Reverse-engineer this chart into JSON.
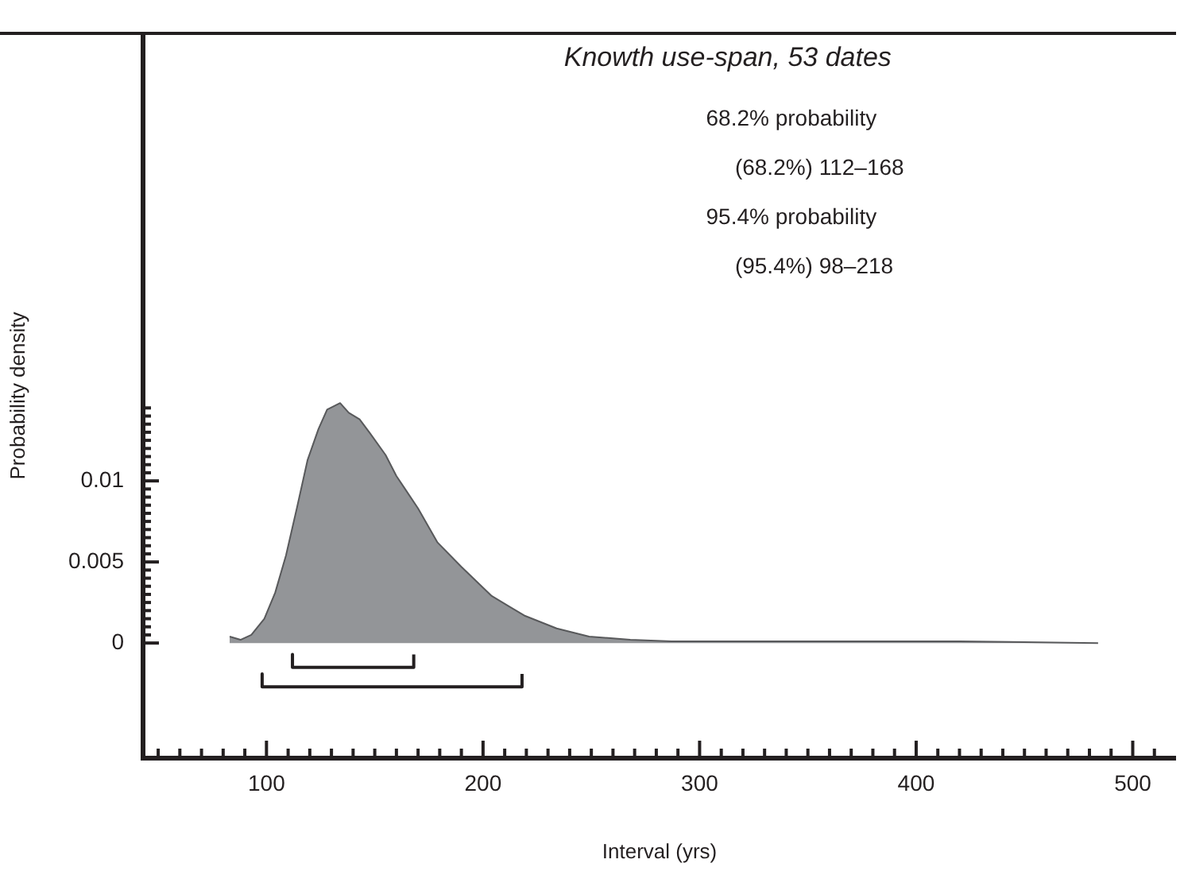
{
  "chart_data": {
    "type": "area",
    "title": "Knowth use-span, 53 dates",
    "xlabel": "Interval (yrs)",
    "ylabel": "Probability density",
    "annotations": [
      "68.2% probability",
      "(68.2%) 112–168",
      "95.4% probability",
      "(95.4%) 98–218"
    ],
    "xlim": [
      43,
      520
    ],
    "ylim": [
      -0.0071,
      0.0376
    ],
    "xticks": [
      {
        "value": 50,
        "label": null
      },
      {
        "value": 60,
        "label": null
      },
      {
        "value": 70,
        "label": null
      },
      {
        "value": 80,
        "label": null
      },
      {
        "value": 90,
        "label": null
      },
      100,
      {
        "value": 110,
        "label": null
      },
      {
        "value": 120,
        "label": null
      },
      {
        "value": 130,
        "label": null
      },
      {
        "value": 140,
        "label": null
      },
      {
        "value": 150,
        "label": null
      },
      {
        "value": 160,
        "label": null
      },
      {
        "value": 170,
        "label": null
      },
      {
        "value": 180,
        "label": null
      },
      {
        "value": 190,
        "label": null
      },
      200,
      {
        "value": 210,
        "label": null
      },
      {
        "value": 220,
        "label": null
      },
      {
        "value": 230,
        "label": null
      },
      {
        "value": 240,
        "label": null
      },
      {
        "value": 250,
        "label": null
      },
      {
        "value": 260,
        "label": null
      },
      {
        "value": 270,
        "label": null
      },
      {
        "value": 280,
        "label": null
      },
      {
        "value": 290,
        "label": null
      },
      300,
      {
        "value": 310,
        "label": null
      },
      {
        "value": 320,
        "label": null
      },
      {
        "value": 330,
        "label": null
      },
      {
        "value": 340,
        "label": null
      },
      {
        "value": 350,
        "label": null
      },
      {
        "value": 360,
        "label": null
      },
      {
        "value": 370,
        "label": null
      },
      {
        "value": 380,
        "label": null
      },
      {
        "value": 390,
        "label": null
      },
      400,
      {
        "value": 410,
        "label": null
      },
      {
        "value": 420,
        "label": null
      },
      {
        "value": 430,
        "label": null
      },
      {
        "value": 440,
        "label": null
      },
      {
        "value": 450,
        "label": null
      },
      {
        "value": 460,
        "label": null
      },
      {
        "value": 470,
        "label": null
      },
      {
        "value": 480,
        "label": null
      },
      {
        "value": 490,
        "label": null
      },
      500,
      {
        "value": 510,
        "label": null
      }
    ],
    "yticks": [
      0,
      {
        "value": 0.0005,
        "label": null
      },
      {
        "value": 0.001,
        "label": null
      },
      {
        "value": 0.0015,
        "label": null
      },
      {
        "value": 0.002,
        "label": null
      },
      {
        "value": 0.0025,
        "label": null
      },
      {
        "value": 0.003,
        "label": null
      },
      {
        "value": 0.0035,
        "label": null
      },
      {
        "value": 0.004,
        "label": null
      },
      {
        "value": 0.0045,
        "label": null
      },
      0.005,
      {
        "value": 0.0055,
        "label": null
      },
      {
        "value": 0.006,
        "label": null
      },
      {
        "value": 0.0065,
        "label": null
      },
      {
        "value": 0.007,
        "label": null
      },
      {
        "value": 0.0075,
        "label": null
      },
      {
        "value": 0.008,
        "label": null
      },
      {
        "value": 0.0085,
        "label": null
      },
      {
        "value": 0.009,
        "label": null
      },
      {
        "value": 0.0095,
        "label": null
      },
      0.01,
      {
        "value": 0.0105,
        "label": null
      },
      {
        "value": 0.011,
        "label": null
      },
      {
        "value": 0.0115,
        "label": null
      },
      {
        "value": 0.012,
        "label": null
      },
      {
        "value": 0.0125,
        "label": null
      },
      {
        "value": 0.013,
        "label": null
      },
      {
        "value": 0.0135,
        "label": null
      },
      {
        "value": 0.014,
        "label": null
      },
      {
        "value": 0.0145,
        "label": null
      }
    ],
    "grid": false,
    "legend": false,
    "series": [
      {
        "color": "#939598",
        "x": [
          83,
          88,
          93,
          99,
          104,
          109,
          114,
          119,
          124,
          128,
          134,
          138,
          143,
          148,
          155,
          160,
          170,
          179,
          190,
          204,
          219,
          234,
          249,
          268,
          287,
          350,
          420,
          484
        ],
        "values": [
          0.0004,
          0.0002,
          0.0005,
          0.0015,
          0.0031,
          0.0054,
          0.0083,
          0.0113,
          0.0132,
          0.0144,
          0.0148,
          0.0142,
          0.0138,
          0.0129,
          0.0116,
          0.0103,
          0.0083,
          0.0062,
          0.0047,
          0.0029,
          0.0017,
          0.0009,
          0.0004,
          0.0002,
          0.0001,
          0.0001,
          0.0001,
          0
        ]
      },
      {
        "type": "line",
        "color": "#231f20",
        "x": [
          112,
          112,
          168,
          168
        ],
        "values": [
          -0.0007,
          -0.0015,
          -0.0015,
          -0.0007
        ]
      },
      {
        "type": "line",
        "color": "#231f20",
        "x": [
          98,
          98,
          218,
          218
        ],
        "values": [
          -0.0019,
          -0.0027,
          -0.0027,
          -0.0019
        ]
      }
    ]
  }
}
